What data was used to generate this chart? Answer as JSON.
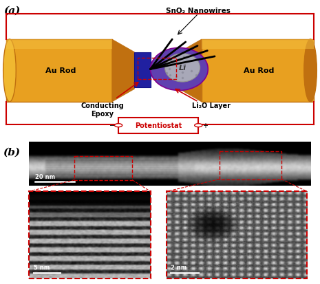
{
  "fig_width": 4.65,
  "fig_height": 4.14,
  "dpi": 100,
  "bg_color": "#ffffff",
  "panel_a_label": "(a)",
  "panel_b_label": "(b)",
  "au_rod_color": "#E8A020",
  "au_rod_dark": "#C07010",
  "epoxy_color": "#2020A0",
  "li2o_color": "#6040B0",
  "li2o_edge": "#800090",
  "li_color": "#A8A8B8",
  "red_color": "#CC0000",
  "potentiostat_label": "Potentiostat",
  "sno2_label": "SnO₂ Nanowires",
  "au_rod_label": "Au Rod",
  "conducting_epoxy_label": "Conducting\nEpoxy",
  "li2o_label": "Li₂O Layer",
  "li_label": "Li",
  "scale_20nm": "20 nm",
  "scale_5nm": "5 nm",
  "scale_2nm": "2 nm"
}
